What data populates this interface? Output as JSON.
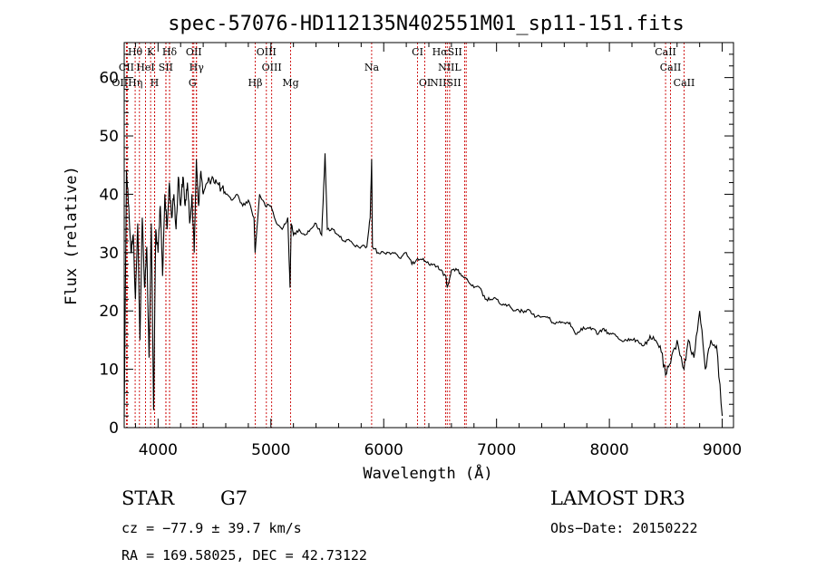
{
  "chart_data": {
    "type": "line",
    "title": "spec-57076-HD112135N402551M01_sp11-151.fits",
    "xlabel": "Wavelength (Å)",
    "ylabel": "Flux (relative)",
    "xlim": [
      3700,
      9100
    ],
    "ylim": [
      0,
      66
    ],
    "xticks": [
      4000,
      5000,
      6000,
      7000,
      8000,
      9000
    ],
    "yticks": [
      0,
      10,
      20,
      30,
      40,
      50,
      60
    ],
    "grid": false,
    "spectrum": {
      "x": [
        3700,
        3720,
        3740,
        3760,
        3780,
        3800,
        3820,
        3840,
        3860,
        3880,
        3900,
        3920,
        3940,
        3960,
        3980,
        4000,
        4020,
        4040,
        4060,
        4080,
        4100,
        4120,
        4140,
        4160,
        4180,
        4200,
        4220,
        4240,
        4260,
        4280,
        4300,
        4320,
        4340,
        4360,
        4380,
        4400,
        4440,
        4480,
        4520,
        4560,
        4600,
        4650,
        4700,
        4750,
        4800,
        4850,
        4860,
        4900,
        4950,
        5000,
        5050,
        5100,
        5150,
        5170,
        5180,
        5200,
        5250,
        5300,
        5350,
        5400,
        5450,
        5480,
        5500,
        5550,
        5600,
        5650,
        5700,
        5750,
        5800,
        5850,
        5880,
        5893,
        5900,
        5950,
        6000,
        6050,
        6100,
        6150,
        6200,
        6250,
        6300,
        6350,
        6400,
        6450,
        6500,
        6550,
        6563,
        6600,
        6650,
        6700,
        6750,
        6800,
        6850,
        6900,
        6950,
        7000,
        7050,
        7100,
        7150,
        7200,
        7250,
        7300,
        7350,
        7400,
        7450,
        7500,
        7550,
        7600,
        7650,
        7700,
        7750,
        7800,
        7850,
        7900,
        7950,
        8000,
        8050,
        8100,
        8150,
        8200,
        8250,
        8300,
        8350,
        8400,
        8450,
        8498,
        8542,
        8600,
        8662,
        8700,
        8750,
        8800,
        8850,
        8900,
        8950,
        9000
      ],
      "y": [
        2,
        44,
        38,
        30,
        33,
        22,
        35,
        15,
        36,
        24,
        31,
        12,
        35,
        3,
        34,
        30,
        38,
        26,
        40,
        34,
        42,
        36,
        40,
        34,
        43,
        38,
        43,
        38,
        42,
        35,
        40,
        30,
        46,
        38,
        44,
        40,
        42,
        43,
        42,
        41,
        40,
        39,
        40,
        38,
        39,
        36,
        30,
        40,
        38,
        38,
        35,
        34,
        36,
        24,
        35,
        33,
        34,
        33,
        34,
        35,
        33,
        47,
        34,
        34,
        33,
        32,
        32,
        31,
        31,
        31,
        36,
        46,
        31,
        30,
        30,
        30,
        30,
        29,
        30,
        28,
        29,
        29,
        28,
        28,
        27,
        26,
        24,
        27,
        27,
        26,
        25,
        24,
        24,
        22,
        22,
        22,
        21,
        21,
        20,
        20,
        20,
        20,
        19,
        19,
        19,
        18,
        18,
        18,
        18,
        16,
        17,
        17,
        17,
        16,
        17,
        16,
        16,
        15,
        15,
        15,
        15,
        14,
        15,
        15,
        14,
        9,
        11,
        15,
        10,
        15,
        12,
        20,
        10,
        15,
        14,
        2
      ]
    },
    "line_markers": [
      {
        "label": "Hθ",
        "x": 3797,
        "row": 0
      },
      {
        "label": "K",
        "x": 3934,
        "row": 0
      },
      {
        "label": "Hδ",
        "x": 4102,
        "row": 0
      },
      {
        "label": "OII",
        "x": 4317,
        "row": 0
      },
      {
        "label": "OIII",
        "x": 4960,
        "row": 0
      },
      {
        "label": "CI",
        "x": 6300,
        "row": 0
      },
      {
        "label": "HαSII",
        "x": 6563,
        "row": 0
      },
      {
        "label": "CaII",
        "x": 8498,
        "row": 0
      },
      {
        "label": "CII",
        "x": 3720,
        "row": 1
      },
      {
        "label": "HeI",
        "x": 3889,
        "row": 1
      },
      {
        "label": "SII",
        "x": 4069,
        "row": 1
      },
      {
        "label": "Hγ",
        "x": 4341,
        "row": 1
      },
      {
        "label": "OIII",
        "x": 5007,
        "row": 1
      },
      {
        "label": "Na",
        "x": 5893,
        "row": 1
      },
      {
        "label": "NIIL",
        "x": 6584,
        "row": 1
      },
      {
        "label": "CaII",
        "x": 8542,
        "row": 1
      },
      {
        "label": "OIIHη",
        "x": 3727,
        "row": 2
      },
      {
        "label": "H",
        "x": 3969,
        "row": 2
      },
      {
        "label": "G",
        "x": 4305,
        "row": 2
      },
      {
        "label": "Hβ",
        "x": 4861,
        "row": 2
      },
      {
        "label": "Mg",
        "x": 5175,
        "row": 2
      },
      {
        "label": "OI",
        "x": 6364,
        "row": 2
      },
      {
        "label": "NIISII",
        "x": 6548,
        "row": 2
      },
      {
        "label": "CaII",
        "x": 8662,
        "row": 2
      }
    ],
    "extra_marker_x": [
      3835,
      3970,
      4070,
      4102,
      4340,
      6717,
      6731
    ],
    "marker_color": "#cc0000"
  },
  "info": {
    "object_type": "STAR",
    "subclass": "G7",
    "survey": "LAMOST DR3",
    "cz": "cz = −77.9 ± 39.7 km/s",
    "obs_date": "Obs−Date: 20150222",
    "coords": "RA = 169.58025, DEC =  42.73122"
  }
}
